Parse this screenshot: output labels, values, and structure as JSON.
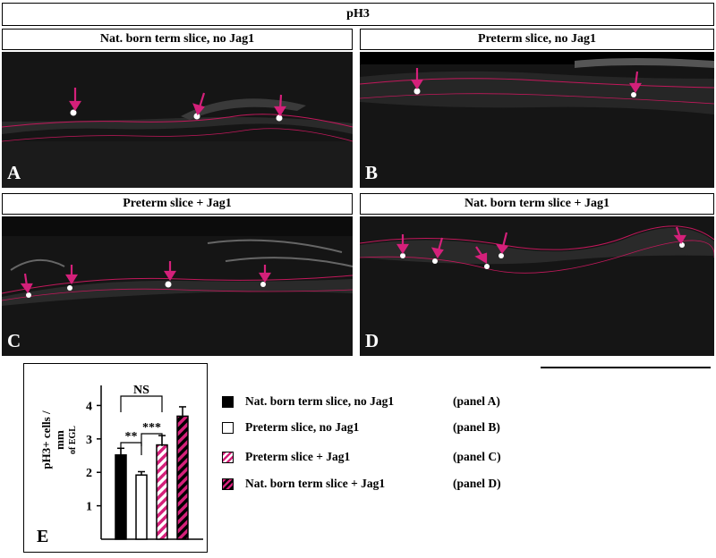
{
  "figure": {
    "header": "pH3",
    "panels": [
      {
        "letter": "A",
        "title": "Nat. born term slice,  no Jag1"
      },
      {
        "letter": "B",
        "title": "Preterm slice, no Jag1"
      },
      {
        "letter": "C",
        "title": "Preterm slice + Jag1"
      },
      {
        "letter": "D",
        "title": "Nat. born term slice  + Jag1"
      }
    ],
    "legend": [
      {
        "label": "Nat. born term slice, no Jag1",
        "panel": "(panel A)",
        "fill": "solid-black"
      },
      {
        "label": "Preterm slice, no Jag1",
        "panel": "(panel B)",
        "fill": "white"
      },
      {
        "label": "Preterm slice + Jag1",
        "panel": "(panel C)",
        "fill": "magenta-white-stripes"
      },
      {
        "label": "Nat. born term slice + Jag1",
        "panel": "(panel D)",
        "fill": "magenta-black-stripes"
      }
    ],
    "colors": {
      "arrow": "#d4207a",
      "outline": "#c2185b",
      "stripe": "#d4207a"
    }
  },
  "chart_data": {
    "type": "bar",
    "panel_letter": "E",
    "ylabel": "pH3+ cells / mm",
    "ylabel_sub": "of EGL",
    "yticks": [
      "1",
      "2",
      "3",
      "4"
    ],
    "ylim": [
      0,
      4.6
    ],
    "categories": [
      "Nat. born term slice, no Jag1",
      "Preterm slice, no Jag1",
      "Preterm slice + Jag1",
      "Nat. born term slice + Jag1"
    ],
    "values": [
      2.52,
      1.92,
      2.82,
      3.68
    ],
    "errors": [
      0.2,
      0.1,
      0.28,
      0.28
    ],
    "fills": [
      "solid-black",
      "white",
      "magenta-white-stripes",
      "magenta-black-stripes"
    ],
    "significance": [
      {
        "label": "NS",
        "between": [
          0,
          2
        ]
      },
      {
        "label": "**",
        "between": [
          0,
          1
        ]
      },
      {
        "label": "***",
        "between": [
          1,
          2
        ]
      }
    ]
  }
}
